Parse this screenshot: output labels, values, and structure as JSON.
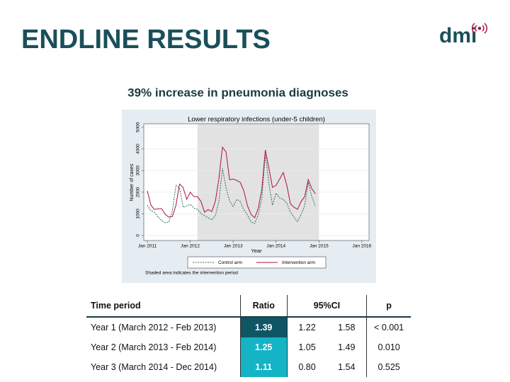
{
  "header": {
    "title": "ENDLINE RESULTS",
    "logo": "dmi"
  },
  "subtitle": "39% increase in pneumonia diagnoses",
  "chart_data": {
    "type": "line",
    "title": "Lower respiratory infections (under-5 children)",
    "x_label": "Year",
    "y_label": "Number of cases",
    "x": [
      "2011-01",
      "2011-02",
      "2011-03",
      "2011-04",
      "2011-05",
      "2011-06",
      "2011-07",
      "2011-08",
      "2011-09",
      "2011-10",
      "2011-11",
      "2011-12",
      "2012-01",
      "2012-02",
      "2012-03",
      "2012-04",
      "2012-05",
      "2012-06",
      "2012-07",
      "2012-08",
      "2012-09",
      "2012-10",
      "2012-11",
      "2012-12",
      "2013-01",
      "2013-02",
      "2013-03",
      "2013-04",
      "2013-05",
      "2013-06",
      "2013-07",
      "2013-08",
      "2013-09",
      "2013-10",
      "2013-11",
      "2013-12",
      "2014-01",
      "2014-02",
      "2014-03",
      "2014-04",
      "2014-05",
      "2014-06",
      "2014-07",
      "2014-08",
      "2014-09",
      "2014-10",
      "2014-11",
      "2014-12"
    ],
    "series": [
      {
        "name": "Control arm",
        "color": "#2e6b5e",
        "line_style": "dashed",
        "values": [
          1400,
          1140,
          1080,
          850,
          690,
          590,
          620,
          1140,
          2320,
          2190,
          1310,
          1370,
          1440,
          1270,
          1210,
          1010,
          920,
          820,
          720,
          920,
          1570,
          3100,
          2220,
          1600,
          1340,
          1670,
          1570,
          1180,
          950,
          620,
          560,
          950,
          1700,
          3760,
          2390,
          1400,
          1960,
          1730,
          1670,
          1500,
          1080,
          850,
          650,
          980,
          1370,
          2450,
          1800,
          1340
        ]
      },
      {
        "name": "Intervention arm",
        "color": "#b0123a",
        "line_style": "solid",
        "values": [
          2060,
          1400,
          1200,
          1240,
          1240,
          980,
          850,
          880,
          1400,
          2380,
          2220,
          1670,
          2000,
          1800,
          1800,
          1570,
          1080,
          1200,
          1110,
          1570,
          2610,
          4080,
          3860,
          2580,
          2610,
          2550,
          2450,
          2060,
          1370,
          980,
          820,
          1240,
          2120,
          3950,
          3100,
          2220,
          2320,
          2610,
          2910,
          2320,
          1470,
          1310,
          1210,
          1570,
          1800,
          2580,
          2160,
          1930
        ]
      }
    ],
    "xlim": [
      "2010-12",
      "2016-03"
    ],
    "xticks": [
      {
        "value": "2011-01",
        "label": "Jan 2011"
      },
      {
        "value": "2012-01",
        "label": "Jan 2012"
      },
      {
        "value": "2013-01",
        "label": "Jan 2013"
      },
      {
        "value": "2014-01",
        "label": "Jan 2014"
      },
      {
        "value": "2015-01",
        "label": "Jan 2015"
      },
      {
        "value": "2016-01",
        "label": "Jan 2016"
      }
    ],
    "ylim": [
      -230,
      5160
    ],
    "yticks": [
      0,
      1000,
      2000,
      3000,
      4000,
      5000
    ],
    "grid": true,
    "shaded_period": [
      "2012-03",
      "2015-01"
    ],
    "note": "Shaded area indicates the intervention period"
  },
  "table": {
    "header": [
      "Time period",
      "Ratio",
      "95%CI",
      "p"
    ],
    "rows": [
      [
        "Year 1 (March 2012 - Feb 2013)",
        "1.39",
        "1.22",
        "1.58",
        "< 0.001"
      ],
      [
        "Year 2 (March 2013 - Feb 2014)",
        "1.25",
        "1.05",
        "1.49",
        "0.010"
      ],
      [
        "Year 3 (March 2014 - Dec 2014)",
        "1.11",
        "0.80",
        "1.54",
        "0.525"
      ]
    ]
  }
}
